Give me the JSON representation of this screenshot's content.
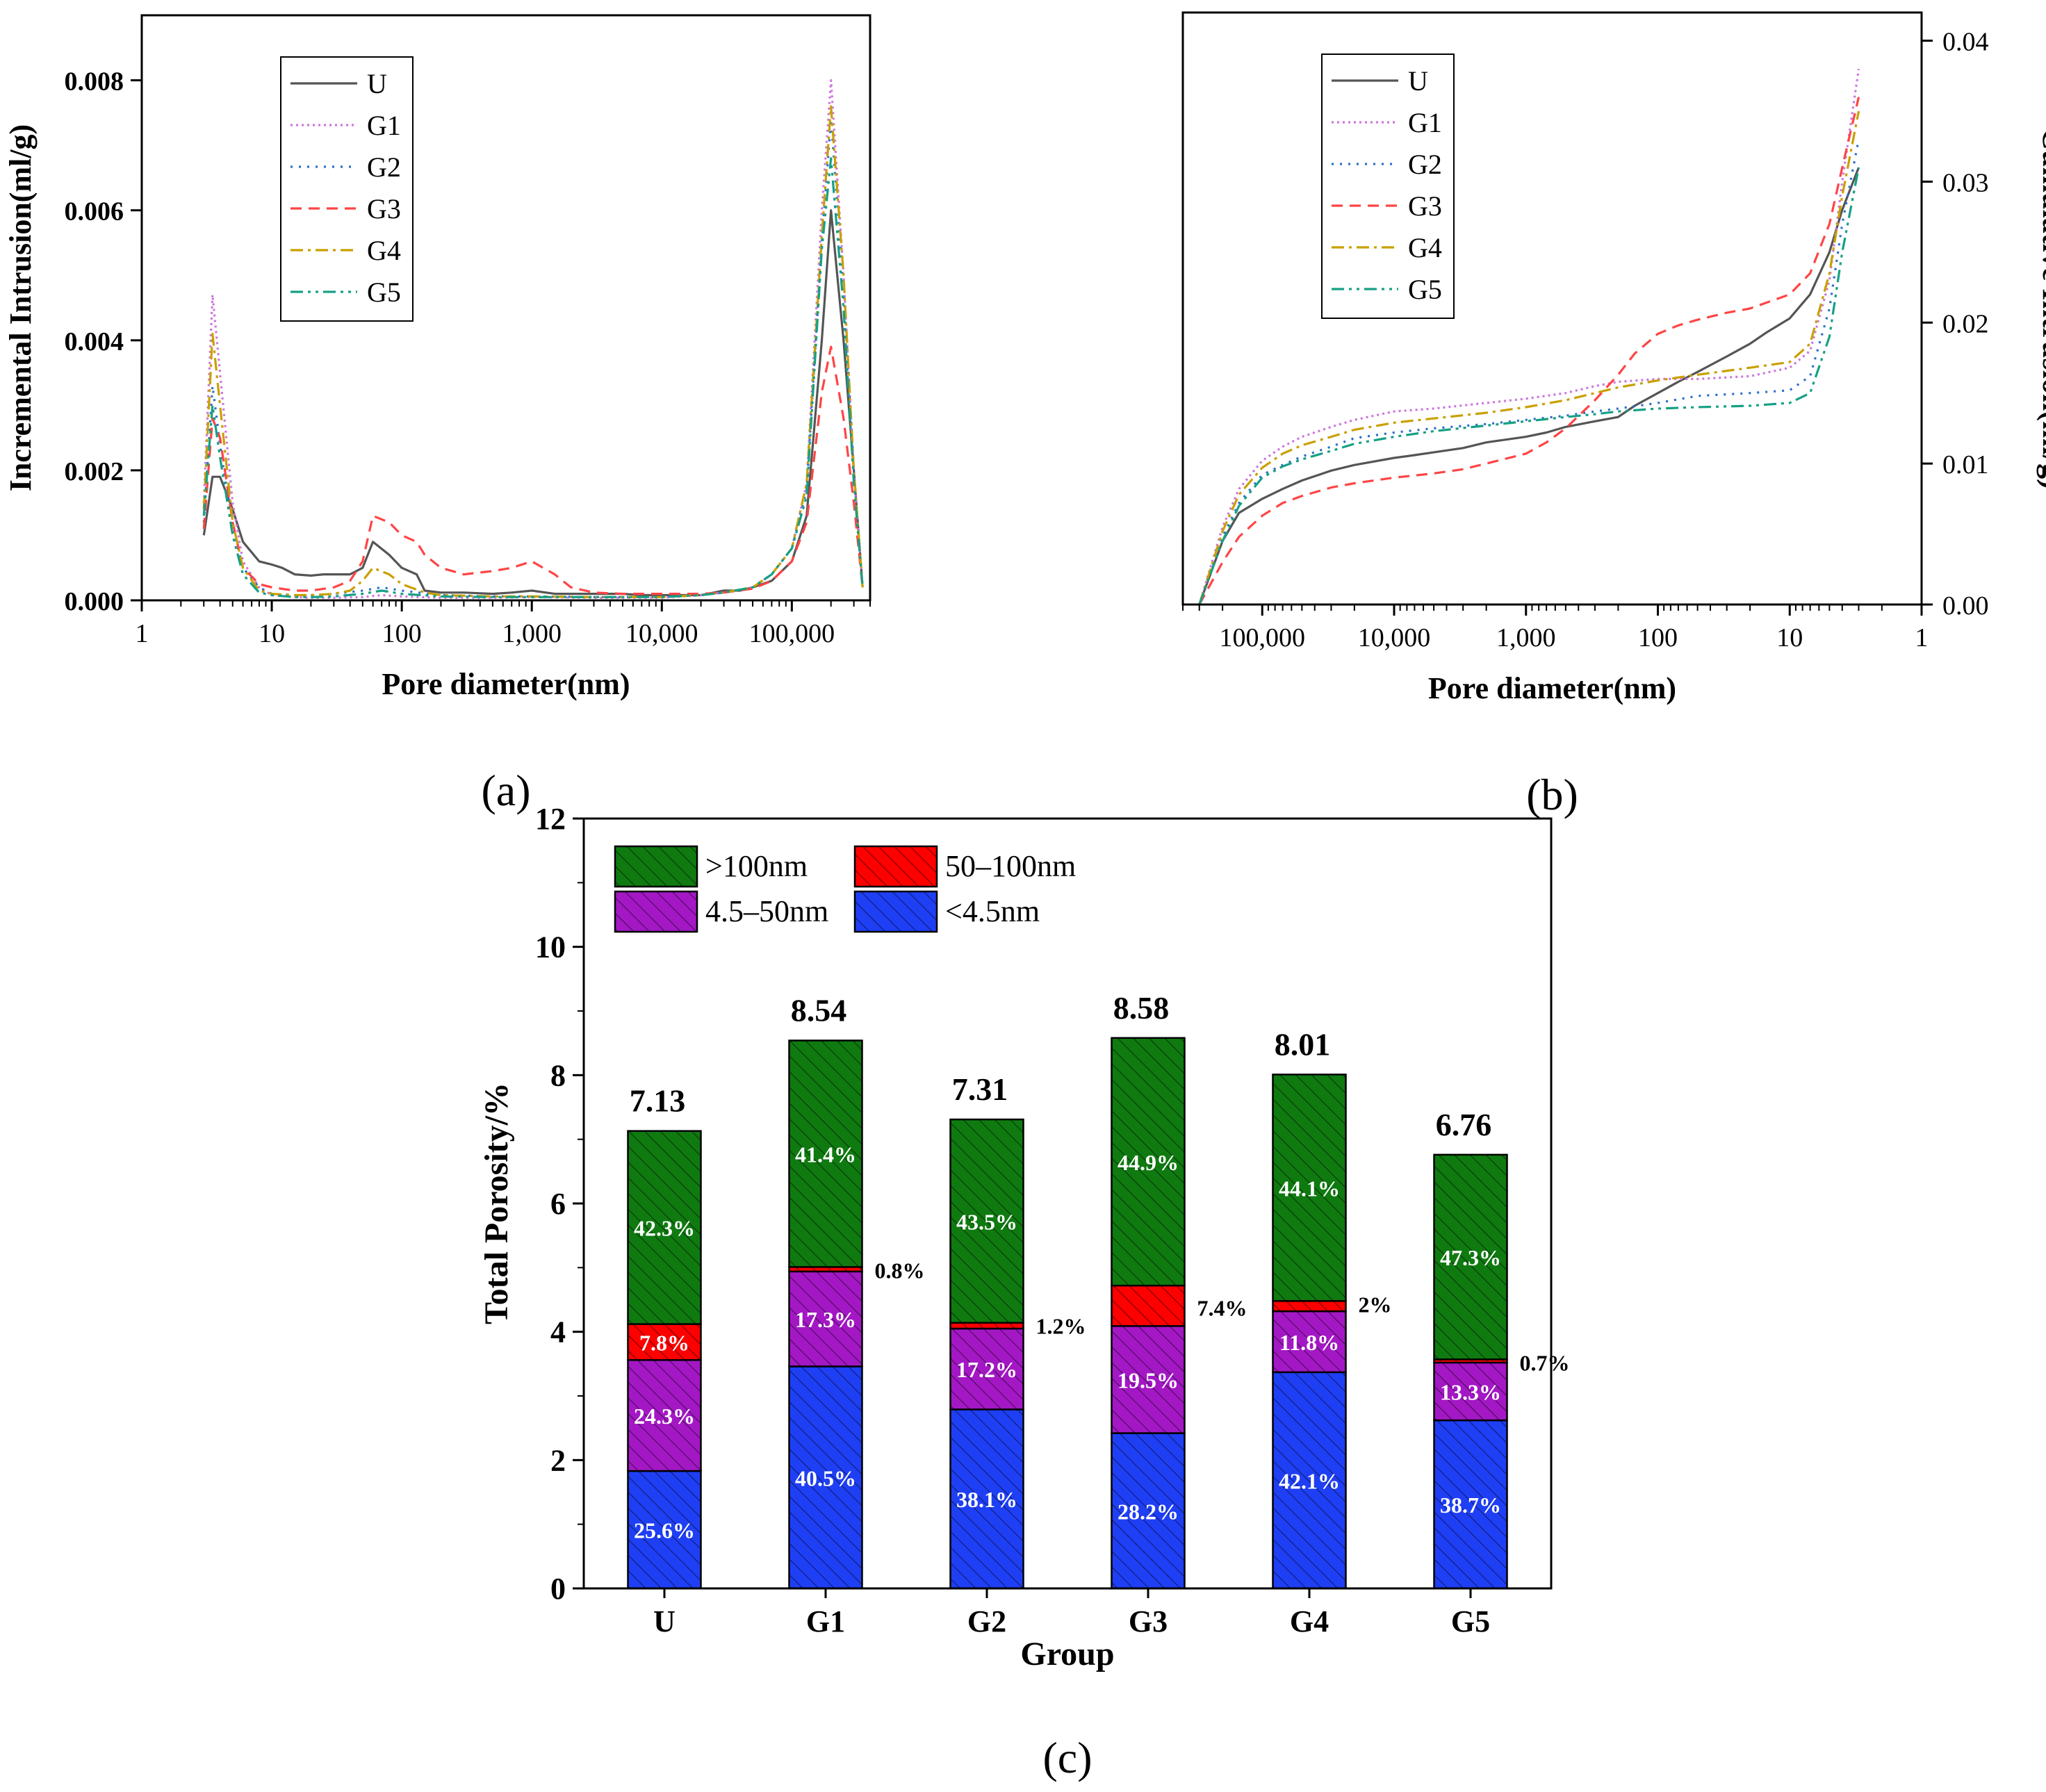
{
  "colors": {
    "U": "#555555",
    "G1": "#cc77dd",
    "G2": "#2a6fc9",
    "G3": "#ff4444",
    "G4": "#c9a000",
    "G5": "#16a085",
    "gt100": "#0f7a10",
    "r50_100": "#ff0000",
    "r4_5_50": "#a318c4",
    "lt4_5": "#1f3ff5"
  },
  "chart_data": [
    {
      "panel": "a",
      "panel_label": "(a)",
      "type": "line",
      "xscale": "log",
      "xlim": [
        1,
        400000
      ],
      "ylim": [
        0,
        0.009
      ],
      "xlabel": "Pore diameter(nm)",
      "ylabel": "Incremental Intrusion(ml/g)",
      "xticks": [
        1,
        10,
        100,
        1000,
        10000,
        100000
      ],
      "xtick_labels": [
        "1",
        "10",
        "100",
        "1,000",
        "10,000",
        "100,000"
      ],
      "yticks": [
        0,
        0.002,
        0.004,
        0.006,
        0.008
      ],
      "ytick_labels": [
        "0.000",
        "0.002",
        "0.004",
        "0.006",
        "0.008"
      ],
      "legend": {
        "position": "top-left",
        "entries": [
          "U",
          "G1",
          "G2",
          "G3",
          "G4",
          "G5"
        ]
      },
      "series": [
        {
          "name": "U",
          "x": [
            3,
            3.5,
            4,
            5,
            6,
            8,
            10,
            12,
            15,
            20,
            25,
            30,
            40,
            50,
            60,
            80,
            100,
            130,
            150,
            200,
            300,
            500,
            700,
            1000,
            1500,
            2000,
            3000,
            5000,
            7000,
            10000,
            20000,
            30000,
            40000,
            50000,
            70000,
            100000,
            130000,
            170000,
            200000,
            250000,
            300000,
            350000
          ],
          "y": [
            0.001,
            0.0019,
            0.0019,
            0.0014,
            0.0009,
            0.0006,
            0.00055,
            0.0005,
            0.0004,
            0.00038,
            0.0004,
            0.0004,
            0.0004,
            0.0005,
            0.0009,
            0.0007,
            0.0005,
            0.0004,
            0.00015,
            0.00012,
            0.00012,
            0.0001,
            0.00012,
            0.00015,
            0.0001,
            0.0001,
            0.0001,
            0.0001,
            8e-05,
            8e-05,
            8e-05,
            0.00015,
            0.00015,
            0.0002,
            0.0003,
            0.0006,
            0.0013,
            0.004,
            0.006,
            0.004,
            0.002,
            0.0002
          ]
        },
        {
          "name": "G1",
          "x": [
            3,
            3.5,
            4,
            5,
            6,
            8,
            10,
            15,
            20,
            30,
            50,
            70,
            100,
            200,
            500,
            1000,
            3000,
            10000,
            20000,
            30000,
            50000,
            70000,
            100000,
            130000,
            170000,
            200000,
            250000,
            300000,
            350000
          ],
          "y": [
            0.0015,
            0.0047,
            0.0035,
            0.0015,
            0.0006,
            0.0002,
            8e-05,
            5e-05,
            4e-05,
            4e-05,
            5e-05,
            8e-05,
            6e-05,
            4e-05,
            4e-05,
            5e-05,
            4e-05,
            4e-05,
            8e-05,
            0.00012,
            0.0002,
            0.0004,
            0.0008,
            0.0018,
            0.006,
            0.008,
            0.005,
            0.002,
            0.0002
          ]
        },
        {
          "name": "G2",
          "x": [
            3,
            3.5,
            4,
            5,
            6,
            8,
            10,
            15,
            20,
            30,
            50,
            70,
            100,
            200,
            500,
            1000,
            3000,
            10000,
            20000,
            30000,
            50000,
            70000,
            100000,
            130000,
            170000,
            200000,
            250000,
            300000,
            350000
          ],
          "y": [
            0.0012,
            0.0033,
            0.0024,
            0.0011,
            0.0005,
            0.0002,
            0.0001,
            8e-05,
            8e-05,
            0.0001,
            0.00015,
            0.0002,
            0.00015,
            8e-05,
            6e-05,
            6e-05,
            5e-05,
            5e-05,
            8e-05,
            0.00012,
            0.0002,
            0.0004,
            0.0008,
            0.0017,
            0.0055,
            0.0074,
            0.0048,
            0.002,
            0.0002
          ]
        },
        {
          "name": "G3",
          "x": [
            3,
            3.5,
            4,
            5,
            6,
            8,
            10,
            15,
            20,
            30,
            40,
            50,
            60,
            80,
            100,
            130,
            150,
            200,
            300,
            500,
            700,
            1000,
            1500,
            2000,
            3000,
            5000,
            7000,
            10000,
            20000,
            30000,
            50000,
            70000,
            100000,
            130000,
            170000,
            200000,
            250000,
            300000,
            350000
          ],
          "y": [
            0.0011,
            0.0028,
            0.0025,
            0.0012,
            0.0005,
            0.00025,
            0.0002,
            0.00015,
            0.00015,
            0.0002,
            0.0003,
            0.0006,
            0.0013,
            0.0012,
            0.001,
            0.0009,
            0.0007,
            0.0005,
            0.0004,
            0.00045,
            0.0005,
            0.0006,
            0.0004,
            0.0002,
            0.00012,
            0.0001,
            0.0001,
            0.0001,
            0.0001,
            0.00012,
            0.00018,
            0.0003,
            0.0006,
            0.0012,
            0.0032,
            0.0039,
            0.0028,
            0.0015,
            0.0002
          ]
        },
        {
          "name": "G4",
          "x": [
            3,
            3.5,
            4,
            5,
            6,
            8,
            10,
            15,
            20,
            30,
            40,
            50,
            60,
            80,
            100,
            150,
            200,
            500,
            1000,
            3000,
            10000,
            20000,
            30000,
            50000,
            70000,
            100000,
            130000,
            170000,
            200000,
            250000,
            300000,
            350000
          ],
          "y": [
            0.0014,
            0.0041,
            0.003,
            0.0012,
            0.0005,
            0.00015,
            0.0001,
            8e-05,
            8e-05,
            0.0001,
            0.00015,
            0.0003,
            0.0005,
            0.0004,
            0.00025,
            0.00012,
            8e-05,
            6e-05,
            6e-05,
            5e-05,
            5e-05,
            8e-05,
            0.00012,
            0.0002,
            0.0004,
            0.0008,
            0.0018,
            0.0056,
            0.0076,
            0.005,
            0.002,
            0.0002
          ]
        },
        {
          "name": "G5",
          "x": [
            3,
            3.5,
            4,
            5,
            6,
            8,
            10,
            15,
            20,
            30,
            50,
            70,
            100,
            200,
            500,
            1000,
            3000,
            10000,
            20000,
            30000,
            50000,
            70000,
            100000,
            130000,
            170000,
            200000,
            250000,
            300000,
            350000
          ],
          "y": [
            0.0013,
            0.003,
            0.0022,
            0.001,
            0.0004,
            0.00012,
            8e-05,
            5e-05,
            5e-05,
            6e-05,
            0.0001,
            0.00015,
            0.0001,
            6e-05,
            5e-05,
            5e-05,
            5e-05,
            5e-05,
            8e-05,
            0.00012,
            0.0002,
            0.0004,
            0.0008,
            0.0016,
            0.0054,
            0.0068,
            0.0045,
            0.0018,
            0.0002
          ]
        }
      ]
    },
    {
      "panel": "b",
      "panel_label": "(b)",
      "type": "line",
      "xscale": "log",
      "x_reversed": true,
      "xlim": [
        1,
        400000
      ],
      "ylim": [
        0,
        0.042
      ],
      "xlabel": "Pore diameter(nm)",
      "ylabel": "Cumulative Intrusion(ml/g)",
      "y_axis_side": "right",
      "xticks": [
        100000,
        10000,
        1000,
        100,
        10,
        1
      ],
      "xtick_labels": [
        "100,000",
        "10,000",
        "1,000",
        "100",
        "10",
        "1"
      ],
      "yticks": [
        0,
        0.01,
        0.02,
        0.03,
        0.04
      ],
      "ytick_labels": [
        "0.00",
        "0.01",
        "0.02",
        "0.03",
        "0.04"
      ],
      "legend": {
        "position": "top-left",
        "entries": [
          "U",
          "G1",
          "G2",
          "G3",
          "G4",
          "G5"
        ]
      },
      "series": [
        {
          "name": "U",
          "x": [
            300000,
            200000,
            150000,
            100000,
            70000,
            50000,
            30000,
            20000,
            10000,
            7000,
            5000,
            3000,
            2000,
            1000,
            700,
            500,
            300,
            200,
            150,
            100,
            70,
            50,
            30,
            20,
            15,
            10,
            7,
            5,
            4,
            3
          ],
          "y": [
            0,
            0.0045,
            0.0065,
            0.0075,
            0.0082,
            0.0088,
            0.0095,
            0.0099,
            0.0104,
            0.0106,
            0.0108,
            0.0111,
            0.0115,
            0.0119,
            0.0122,
            0.0126,
            0.013,
            0.0133,
            0.0141,
            0.015,
            0.0158,
            0.0165,
            0.0176,
            0.0185,
            0.0193,
            0.0203,
            0.022,
            0.025,
            0.028,
            0.031
          ]
        },
        {
          "name": "G1",
          "x": [
            300000,
            200000,
            150000,
            100000,
            70000,
            50000,
            30000,
            20000,
            10000,
            5000,
            2000,
            1000,
            500,
            300,
            200,
            100,
            50,
            20,
            10,
            7,
            5,
            4,
            3
          ],
          "y": [
            0,
            0.0055,
            0.0082,
            0.0102,
            0.0112,
            0.0119,
            0.0126,
            0.0131,
            0.0137,
            0.0139,
            0.0143,
            0.0146,
            0.015,
            0.0155,
            0.0158,
            0.016,
            0.016,
            0.0162,
            0.0168,
            0.018,
            0.023,
            0.03,
            0.038
          ]
        },
        {
          "name": "G2",
          "x": [
            300000,
            200000,
            150000,
            100000,
            70000,
            50000,
            30000,
            20000,
            10000,
            5000,
            2000,
            1000,
            500,
            300,
            200,
            100,
            50,
            20,
            10,
            7,
            5,
            4,
            3
          ],
          "y": [
            0,
            0.0048,
            0.0072,
            0.0092,
            0.0099,
            0.0105,
            0.0112,
            0.0118,
            0.0122,
            0.0125,
            0.0128,
            0.0131,
            0.0134,
            0.0137,
            0.0139,
            0.0143,
            0.0148,
            0.015,
            0.0152,
            0.0162,
            0.021,
            0.027,
            0.033
          ]
        },
        {
          "name": "G3",
          "x": [
            300000,
            200000,
            150000,
            100000,
            70000,
            50000,
            30000,
            20000,
            10000,
            5000,
            3000,
            2000,
            1000,
            700,
            500,
            300,
            200,
            150,
            100,
            70,
            50,
            30,
            20,
            10,
            7,
            5,
            4,
            3
          ],
          "y": [
            0,
            0.003,
            0.0048,
            0.0063,
            0.0072,
            0.0077,
            0.0083,
            0.0086,
            0.009,
            0.0093,
            0.0096,
            0.01,
            0.0107,
            0.0115,
            0.0125,
            0.0145,
            0.0163,
            0.0178,
            0.0192,
            0.0198,
            0.0202,
            0.0207,
            0.021,
            0.022,
            0.0235,
            0.027,
            0.031,
            0.036
          ]
        },
        {
          "name": "G4",
          "x": [
            300000,
            200000,
            150000,
            100000,
            70000,
            50000,
            30000,
            20000,
            10000,
            5000,
            2000,
            1000,
            500,
            300,
            200,
            100,
            50,
            20,
            10,
            7,
            5,
            4,
            3
          ],
          "y": [
            0,
            0.0052,
            0.0078,
            0.0097,
            0.0107,
            0.0113,
            0.0119,
            0.0124,
            0.0129,
            0.0132,
            0.0136,
            0.014,
            0.0145,
            0.015,
            0.0154,
            0.0159,
            0.0163,
            0.0168,
            0.0172,
            0.0185,
            0.0235,
            0.029,
            0.035
          ]
        },
        {
          "name": "G5",
          "x": [
            300000,
            200000,
            150000,
            100000,
            70000,
            50000,
            30000,
            20000,
            10000,
            5000,
            2000,
            1000,
            500,
            300,
            200,
            100,
            50,
            20,
            10,
            7,
            5,
            4,
            3
          ],
          "y": [
            0,
            0.0045,
            0.007,
            0.009,
            0.0098,
            0.0103,
            0.0109,
            0.0114,
            0.0119,
            0.0123,
            0.0127,
            0.013,
            0.0133,
            0.0135,
            0.0137,
            0.0139,
            0.014,
            0.0141,
            0.0143,
            0.015,
            0.019,
            0.025,
            0.031
          ]
        }
      ]
    },
    {
      "panel": "c",
      "panel_label": "(c)",
      "type": "bar",
      "stacked": true,
      "categories": [
        "U",
        "G1",
        "G2",
        "G3",
        "G4",
        "G5"
      ],
      "xlabel": "Group",
      "ylabel": "Total Porosity/%",
      "ylim": [
        0,
        12
      ],
      "yticks": [
        0,
        2,
        4,
        6,
        8,
        10,
        12
      ],
      "ytick_labels": [
        "0",
        "2",
        "4",
        "6",
        "8",
        "10",
        "12"
      ],
      "totals": [
        7.13,
        8.54,
        7.31,
        8.58,
        8.01,
        6.76
      ],
      "total_labels": [
        "7.13",
        "8.54",
        "7.31",
        "8.58",
        "8.01",
        "6.76"
      ],
      "legend": {
        "position": "top-left",
        "entries": [
          ">100nm",
          "50–100nm",
          "4.5–50nm",
          "<4.5nm"
        ]
      },
      "series": [
        {
          "name": "<4.5nm",
          "key": "lt4_5",
          "values": [
            1.83,
            3.46,
            2.79,
            2.42,
            3.37,
            2.62
          ],
          "labels": [
            "25.6%",
            "40.5%",
            "38.1%",
            "28.2%",
            "42.1%",
            "38.7%"
          ]
        },
        {
          "name": "4.5–50nm",
          "key": "r4_5_50",
          "values": [
            1.73,
            1.48,
            1.26,
            1.67,
            0.95,
            0.9
          ],
          "labels": [
            "24.3%",
            "17.3%",
            "17.2%",
            "19.5%",
            "11.8%",
            "13.3%"
          ]
        },
        {
          "name": "50–100nm",
          "key": "r50_100",
          "values": [
            0.56,
            0.07,
            0.09,
            0.63,
            0.16,
            0.05
          ],
          "labels": [
            "7.8%",
            "0.8%",
            "1.2%",
            "7.4%",
            "2%",
            "0.7%"
          ]
        },
        {
          "name": ">100nm",
          "key": "gt100",
          "values": [
            3.01,
            3.53,
            3.17,
            3.86,
            3.53,
            3.19
          ],
          "labels": [
            "42.3%",
            "41.4%",
            "43.5%",
            "44.9%",
            "44.1%",
            "47.3%"
          ]
        }
      ]
    }
  ]
}
